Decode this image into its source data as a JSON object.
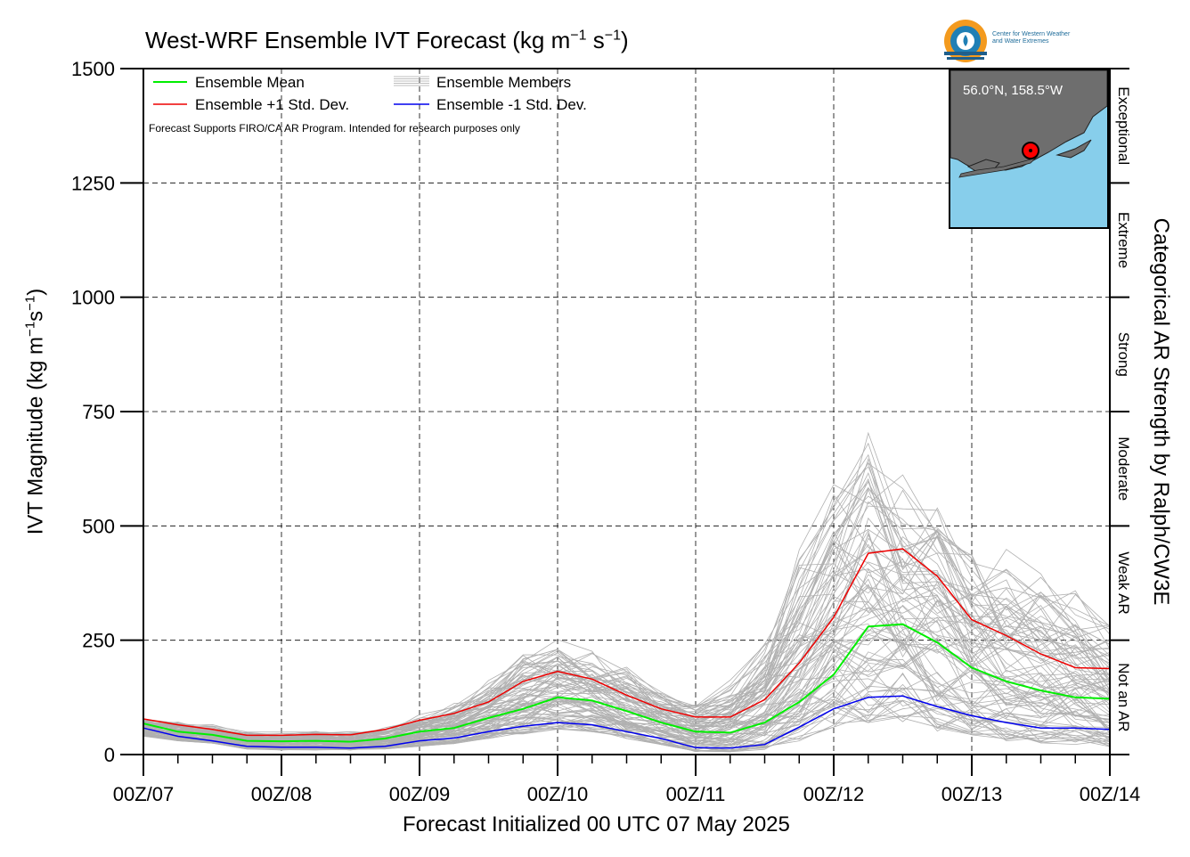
{
  "chart_data": {
    "type": "line",
    "title": "West-WRF Ensemble IVT Forecast (kg m",
    "title_units_tail": "s",
    "xlabel": "Forecast Initialized 00 UTC 07 May 2025",
    "ylabel": "IVT Magnitude (kg m",
    "ylabel_tail": "s",
    "right_label": "Categorical AR Strength by Ralph/CW3E",
    "ylim": [
      0,
      1500
    ],
    "yticks": [
      0,
      250,
      500,
      750,
      1000,
      1250,
      1500
    ],
    "xticks": [
      "00Z/07",
      "00Z/08",
      "00Z/09",
      "00Z/10",
      "00Z/11",
      "00Z/12",
      "00Z/13",
      "00Z/14"
    ],
    "xlim_days": [
      0,
      7
    ],
    "grid": true,
    "categories_right": [
      "Not an AR",
      "Weak AR",
      "Moderate",
      "Strong",
      "Extreme",
      "Exceptional"
    ],
    "category_bounds": [
      0,
      250,
      500,
      750,
      1000,
      1250,
      1500
    ],
    "note": "Forecast Supports FIRO/CA AR Program. Intended for research purposes only",
    "legend": {
      "placement": "top-left",
      "entries": [
        {
          "label": "Ensemble Mean",
          "color": "#00ee00"
        },
        {
          "label": "Ensemble +1 Std. Dev.",
          "color": "#ee0000"
        },
        {
          "label": "Ensemble Members",
          "color": "#aaaaaa"
        },
        {
          "label": "Ensemble -1 Std. Dev.",
          "color": "#0000ee"
        }
      ]
    },
    "x": [
      0,
      0.25,
      0.5,
      0.75,
      1,
      1.25,
      1.5,
      1.75,
      2,
      2.25,
      2.5,
      2.75,
      3,
      3.25,
      3.5,
      3.75,
      4,
      4.25,
      4.5,
      4.75,
      5,
      5.25,
      5.5,
      5.75,
      6,
      6.25,
      6.5,
      6.75,
      7
    ],
    "series": [
      {
        "name": "Ensemble Mean",
        "color": "#00ee00",
        "values": [
          68,
          50,
          43,
          30,
          29,
          30,
          28,
          35,
          50,
          58,
          80,
          100,
          125,
          118,
          95,
          70,
          50,
          48,
          70,
          115,
          175,
          280,
          285,
          245,
          190,
          160,
          140,
          125,
          122
        ]
      },
      {
        "name": "Ensemble +1 Std. Dev.",
        "color": "#ee0000",
        "values": [
          78,
          65,
          55,
          42,
          42,
          44,
          43,
          55,
          75,
          90,
          115,
          160,
          182,
          165,
          130,
          100,
          82,
          82,
          120,
          200,
          300,
          440,
          450,
          390,
          295,
          260,
          220,
          190,
          188
        ]
      },
      {
        "name": "Ensemble -1 Std. Dev.",
        "color": "#0000ee",
        "values": [
          58,
          40,
          30,
          18,
          16,
          16,
          14,
          18,
          30,
          36,
          50,
          62,
          70,
          65,
          50,
          35,
          15,
          14,
          22,
          60,
          100,
          125,
          128,
          105,
          85,
          70,
          58,
          58,
          55
        ]
      }
    ],
    "members_envelope": {
      "min": [
        40,
        30,
        25,
        12,
        10,
        10,
        10,
        12,
        18,
        24,
        35,
        45,
        55,
        50,
        35,
        22,
        6,
        6,
        10,
        30,
        60,
        70,
        65,
        50,
        40,
        30,
        25,
        20,
        15
      ],
      "max": [
        85,
        80,
        70,
        55,
        55,
        58,
        58,
        70,
        90,
        120,
        180,
        240,
        280,
        260,
        210,
        160,
        130,
        180,
        300,
        500,
        690,
        820,
        720,
        640,
        520,
        480,
        440,
        400,
        330
      ]
    },
    "inset": {
      "location_label": "56.0°N, 158.5°W",
      "land_color": "#6e6e6e",
      "water_color": "#87ceeb",
      "marker_color": "#ff0000"
    }
  },
  "logo": {
    "line1": "Center for Western Weather",
    "line2": "and Water Extremes"
  }
}
